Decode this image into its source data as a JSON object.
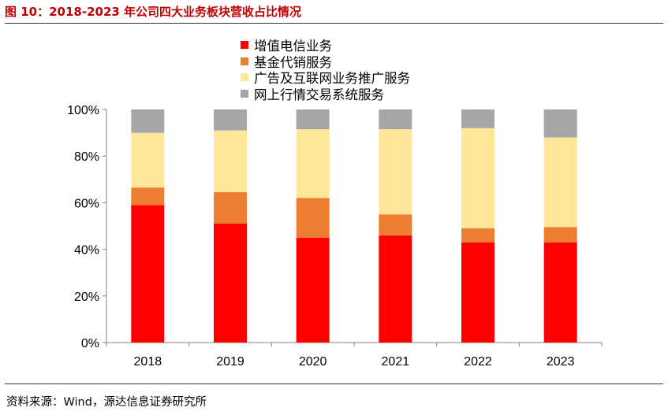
{
  "header": {
    "title": "图 10：2018-2023 年公司四大业务板块营收占比情况"
  },
  "footer": {
    "source": "资料来源：Wind，源达信息证券研究所"
  },
  "chart_data": {
    "type": "bar",
    "stacked": true,
    "categories": [
      "2018",
      "2019",
      "2020",
      "2021",
      "2022",
      "2023"
    ],
    "series": [
      {
        "name": "增值电信业务",
        "color": "#FF0000",
        "values": [
          59,
          51,
          45,
          46,
          43,
          43
        ]
      },
      {
        "name": "基金代销服务",
        "color": "#ED7D31",
        "values": [
          7.5,
          13.5,
          17,
          9,
          6,
          6.5
        ]
      },
      {
        "name": "广告及互联网业务推广服务",
        "color": "#FFE699",
        "values": [
          23.5,
          26.5,
          29.5,
          36.5,
          43,
          38.5
        ]
      },
      {
        "name": "网上行情交易系统服务",
        "color": "#A6A6A6",
        "values": [
          10,
          9,
          8.5,
          8.5,
          8,
          12
        ]
      }
    ],
    "ylim": [
      0,
      100
    ],
    "yticks": [
      "0%",
      "20%",
      "40%",
      "60%",
      "80%",
      "100%"
    ],
    "grid": false,
    "legend_position": "top-center"
  }
}
